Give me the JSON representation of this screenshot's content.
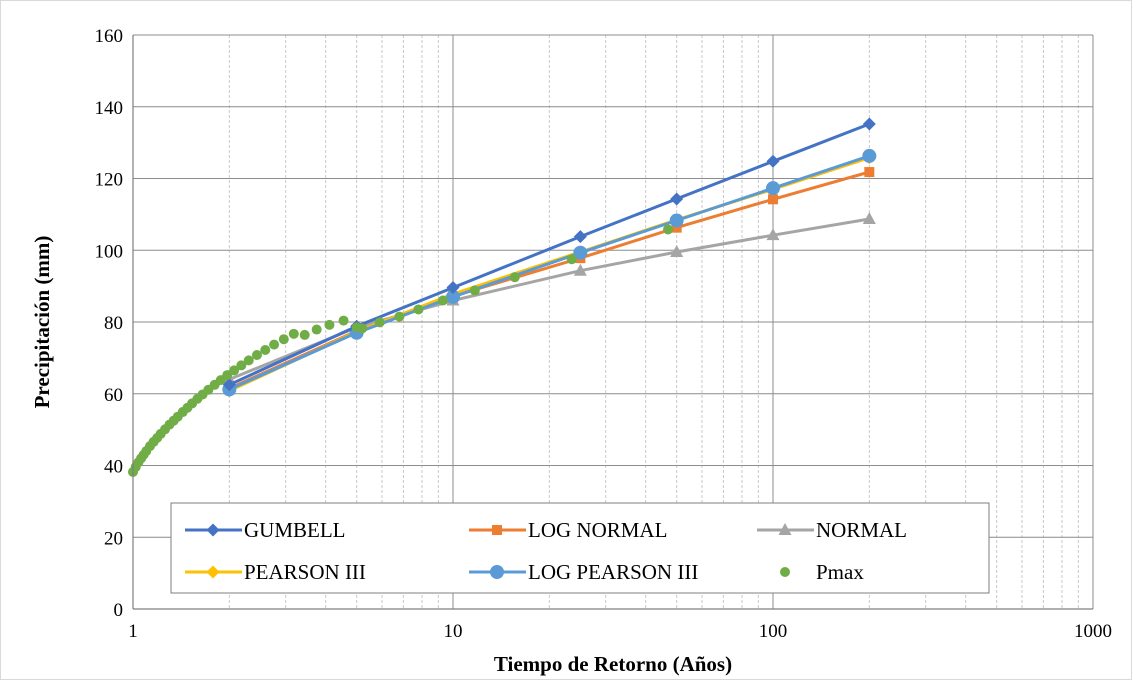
{
  "chart_data": {
    "type": "line",
    "title": "",
    "xlabel": "Tiempo de Retorno (Años)",
    "ylabel": "Precipitación (mm)",
    "xscale": "log",
    "xlim": [
      1,
      1000
    ],
    "ylim": [
      0,
      160
    ],
    "x_ticks": [
      "1",
      "10",
      "100",
      "1000"
    ],
    "y_ticks": [
      "0",
      "20",
      "40",
      "60",
      "80",
      "100",
      "120",
      "140",
      "160"
    ],
    "grid": true,
    "legend_position": "inside-bottom",
    "series": [
      {
        "name": "GUMBELL",
        "color": "#4472C4",
        "marker": "diamond",
        "line": true,
        "x": [
          2,
          5,
          10,
          25,
          50,
          100,
          200
        ],
        "y": [
          62.5,
          78.8,
          89.6,
          103.8,
          114.3,
          124.8,
          135.2
        ]
      },
      {
        "name": "LOG NORMAL",
        "color": "#ED7D31",
        "marker": "square",
        "line": true,
        "x": [
          2,
          5,
          10,
          25,
          50,
          100,
          200
        ],
        "y": [
          61.5,
          77.5,
          87.2,
          97.8,
          106.3,
          114.2,
          121.8
        ]
      },
      {
        "name": "NORMAL",
        "color": "#A5A5A5",
        "marker": "triangle",
        "line": true,
        "x": [
          2,
          5,
          10,
          25,
          50,
          100,
          200
        ],
        "y": [
          64.0,
          78.5,
          86.0,
          94.3,
          99.5,
          104.2,
          108.7
        ]
      },
      {
        "name": "PEARSON III",
        "color": "#FFC000",
        "marker": "diamond",
        "line": true,
        "x": [
          2,
          5,
          10,
          25,
          50,
          100,
          200
        ],
        "y": [
          60.8,
          77.3,
          87.8,
          99.5,
          108.5,
          117.0,
          125.8
        ]
      },
      {
        "name": "LOG PEARSON III",
        "color": "#5B9BD5",
        "marker": "circle",
        "line": true,
        "x": [
          2,
          5,
          10,
          25,
          50,
          100,
          200
        ],
        "y": [
          61.2,
          77.0,
          87.0,
          99.3,
          108.3,
          117.3,
          126.3
        ]
      },
      {
        "name": "Pmax",
        "color": "#70AD47",
        "marker": "dot",
        "line": false,
        "x": [
          1.0,
          1.02,
          1.04,
          1.06,
          1.08,
          1.1,
          1.13,
          1.16,
          1.19,
          1.22,
          1.26,
          1.3,
          1.34,
          1.38,
          1.43,
          1.48,
          1.53,
          1.59,
          1.65,
          1.72,
          1.8,
          1.88,
          1.97,
          2.07,
          2.18,
          2.3,
          2.44,
          2.59,
          2.76,
          2.96,
          3.18,
          3.44,
          3.75,
          4.11,
          4.55,
          5.0,
          5.2,
          5.9,
          6.8,
          7.8,
          9.3,
          11.7,
          15.6,
          23.5,
          47.0
        ],
        "y": [
          38.2,
          39.6,
          40.9,
          42.0,
          43.0,
          44.0,
          45.4,
          46.6,
          47.7,
          48.8,
          50.1,
          51.4,
          52.5,
          53.6,
          54.9,
          56.1,
          57.3,
          58.6,
          59.8,
          61.1,
          62.5,
          63.8,
          65.2,
          66.5,
          67.9,
          69.3,
          70.8,
          72.2,
          73.7,
          75.2,
          76.7,
          76.4,
          77.9,
          79.2,
          80.4,
          78.5,
          78.2,
          79.9,
          81.5,
          83.5,
          86.0,
          88.8,
          92.5,
          97.5,
          105.8
        ]
      }
    ]
  }
}
